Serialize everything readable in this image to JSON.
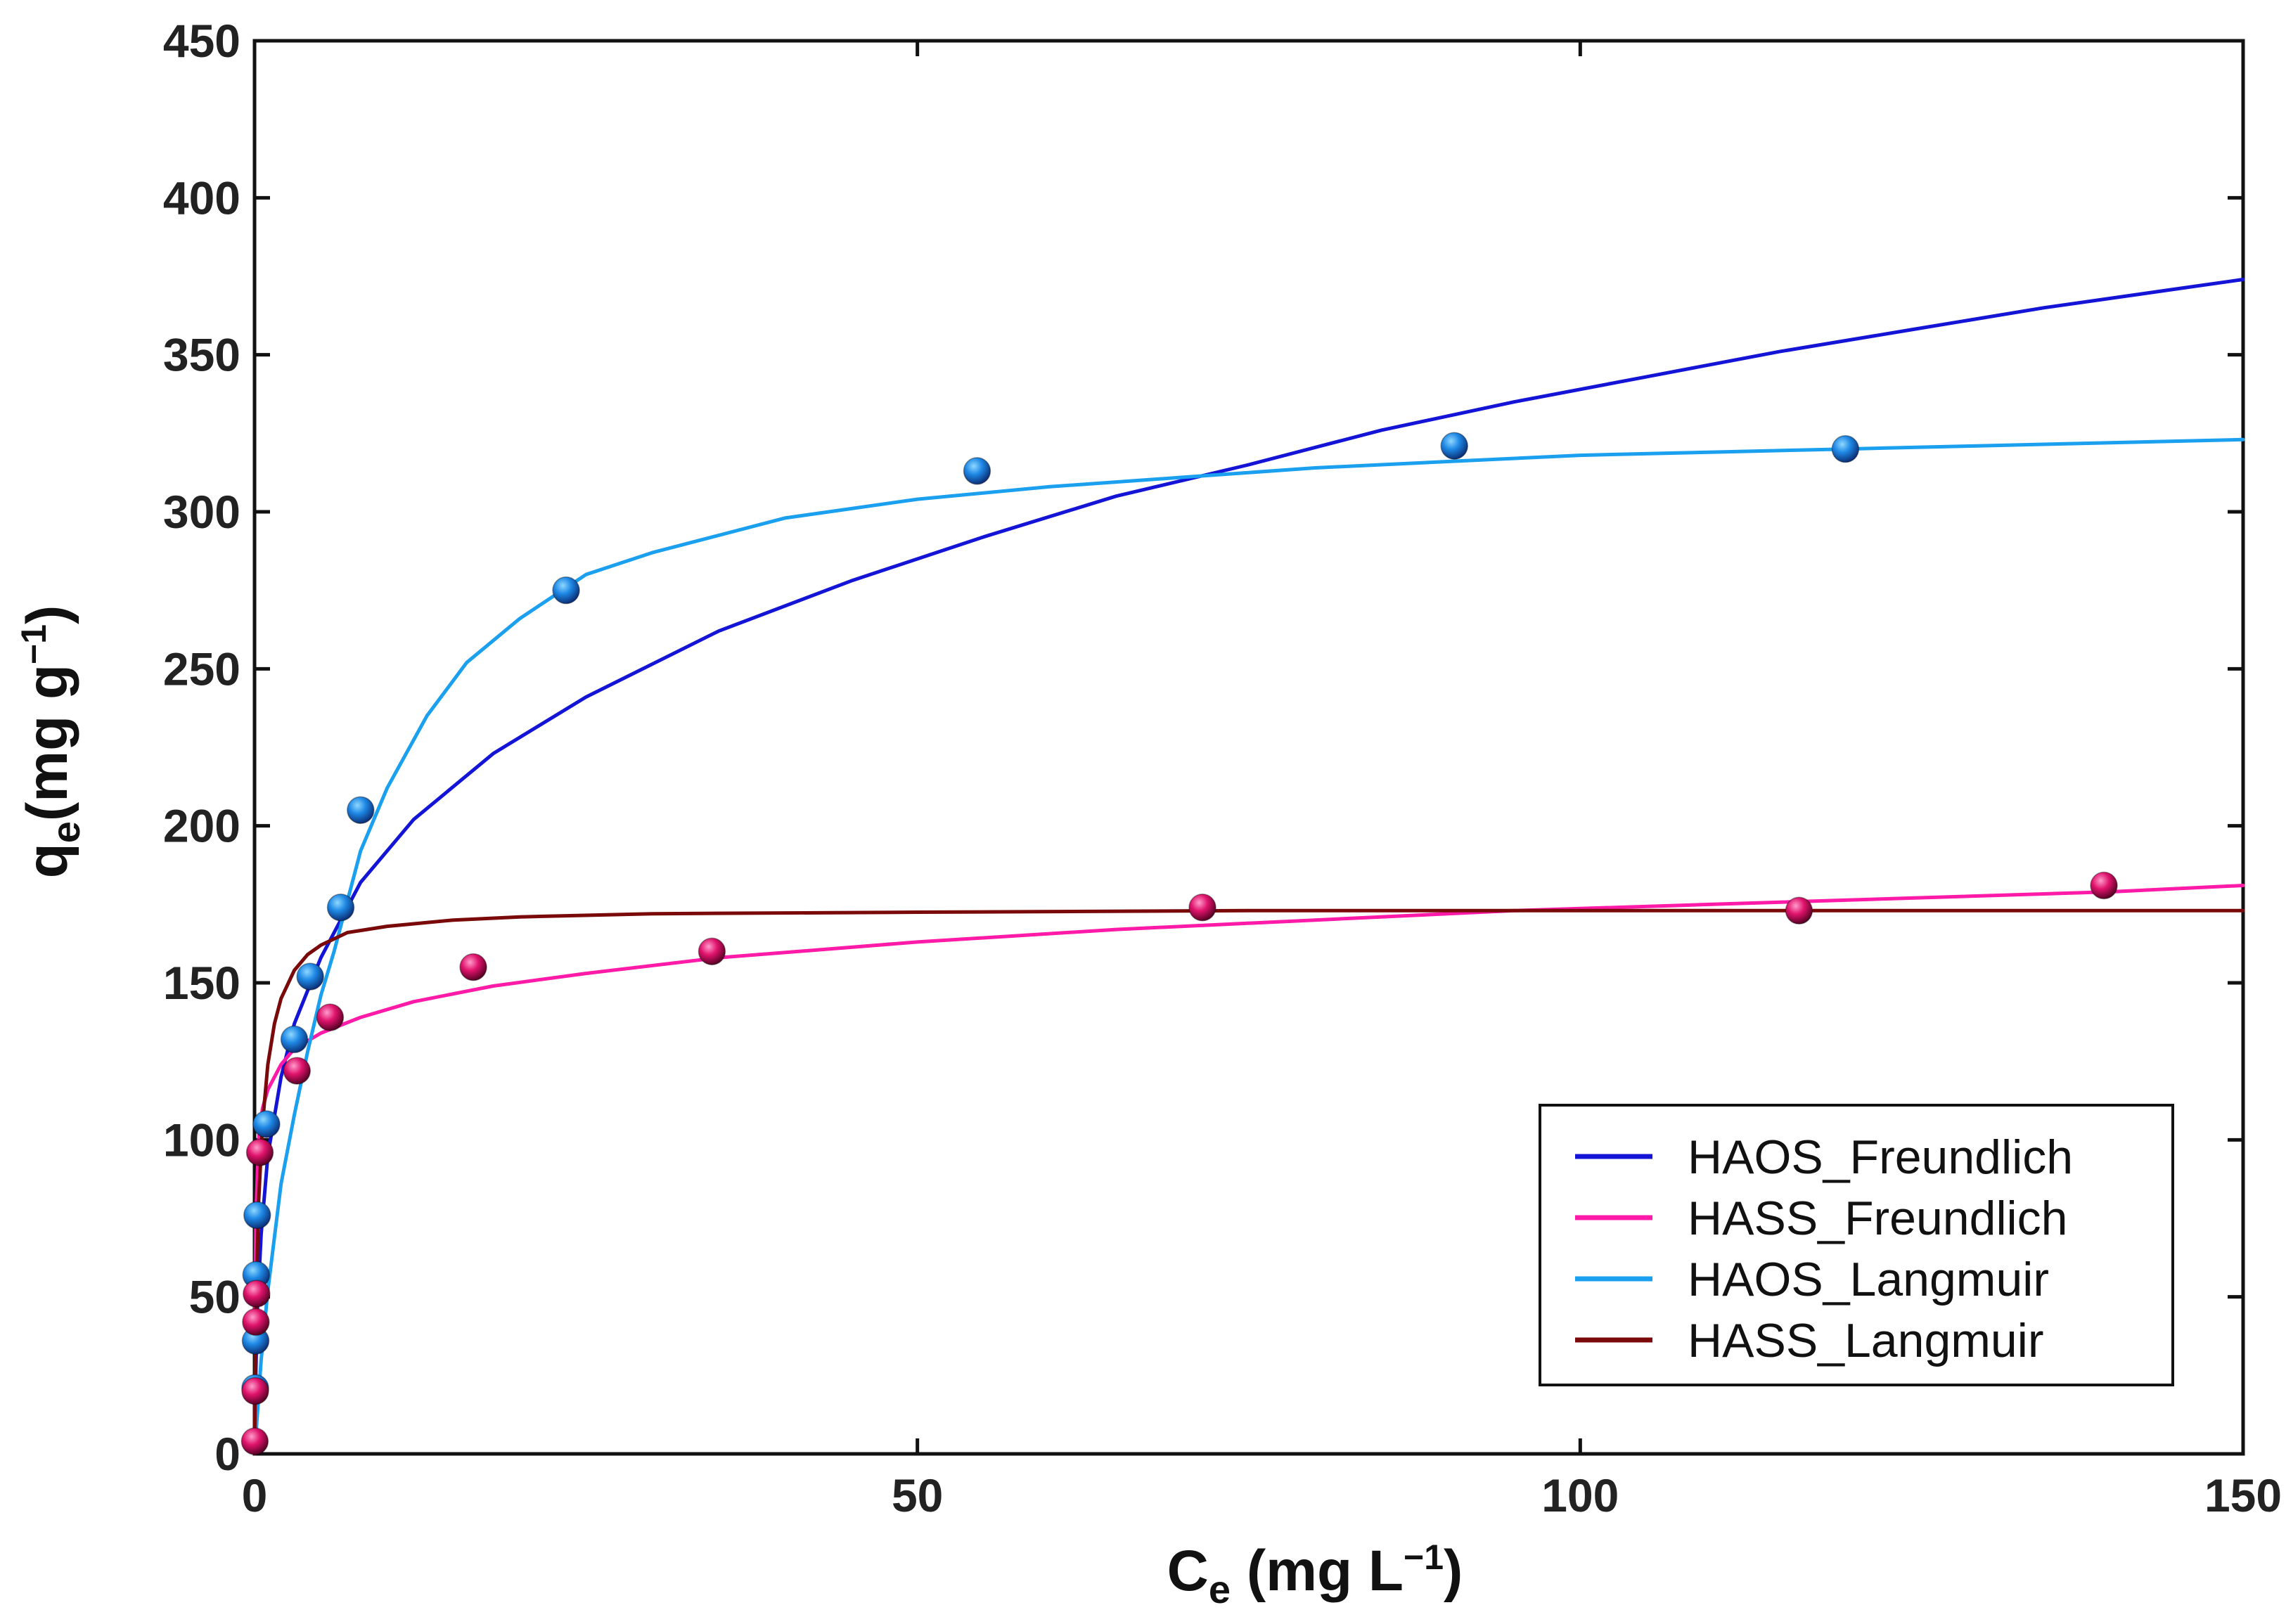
{
  "chart_data": {
    "type": "scatter",
    "xlabel": {
      "main": "C",
      "sub": "e",
      "units_pre": " (mg L",
      "sup": "−1",
      "units_post": ")"
    },
    "ylabel": {
      "main": "q",
      "sub": "e",
      "units_pre": "(mg g",
      "sup": "−1",
      "units_post": ")"
    },
    "xlim": [
      0,
      150
    ],
    "ylim": [
      0,
      450
    ],
    "xticks": [
      0,
      50,
      100,
      150
    ],
    "yticks": [
      0,
      50,
      100,
      150,
      200,
      250,
      300,
      350,
      400,
      450
    ],
    "grid": false,
    "legend_position": "bottom-right",
    "legend": [
      {
        "label": "HAOS_Freundlich",
        "color": "#1414d6"
      },
      {
        "label": "HASS_Freundlich",
        "color": "#ff1aa8"
      },
      {
        "label": "HAOS_Langmuir",
        "color": "#1aa0ee"
      },
      {
        "label": "HASS_Langmuir",
        "color": "#7a0a0a"
      }
    ],
    "series": [
      {
        "name": "HAOS_Freundlich",
        "kind": "line",
        "color": "#1414d6",
        "x": [
          0.02,
          0.2,
          0.5,
          1,
          2,
          3,
          5,
          8,
          12,
          18,
          25,
          35,
          45,
          55,
          65,
          75,
          85,
          95,
          105,
          115,
          125,
          135,
          145,
          150
        ],
        "y": [
          12,
          45,
          70,
          95,
          120,
          137,
          158,
          182,
          202,
          223,
          241,
          262,
          278,
          292,
          305,
          315,
          326,
          335,
          343,
          351,
          358,
          365,
          371,
          374
        ]
      },
      {
        "name": "HASS_Freundlich",
        "kind": "line",
        "color": "#ff1aa8",
        "x": [
          0.02,
          0.1,
          0.3,
          0.6,
          1,
          2,
          3,
          5,
          8,
          12,
          18,
          25,
          35,
          50,
          65,
          80,
          95,
          110,
          125,
          140,
          150
        ],
        "y": [
          40,
          75,
          100,
          110,
          116,
          124,
          129,
          134,
          139,
          144,
          149,
          153,
          158,
          163,
          167,
          170,
          173,
          175,
          177,
          179,
          181
        ]
      },
      {
        "name": "HAOS_Langmuir",
        "kind": "line",
        "color": "#1aa0ee",
        "x": [
          0,
          0.5,
          1,
          2,
          3,
          4,
          5,
          6,
          8,
          10,
          13,
          16,
          20,
          25,
          30,
          40,
          50,
          60,
          70,
          80,
          90,
          100,
          110,
          120,
          130,
          140,
          150
        ],
        "y": [
          0,
          30,
          52,
          86,
          108,
          128,
          146,
          160,
          192,
          212,
          235,
          252,
          266,
          280,
          287,
          298,
          304,
          308,
          311,
          314,
          316,
          318,
          319,
          320,
          321,
          322,
          323
        ]
      },
      {
        "name": "HASS_Langmuir",
        "kind": "line",
        "color": "#7a0a0a",
        "x": [
          0,
          0.1,
          0.3,
          0.6,
          1,
          1.5,
          2,
          3,
          4,
          5,
          7,
          10,
          15,
          20,
          30,
          50,
          75,
          100,
          125,
          150
        ],
        "y": [
          0,
          42,
          80,
          105,
          124,
          137,
          145,
          154,
          159,
          162,
          166,
          168,
          170,
          171,
          172,
          172.5,
          173,
          173,
          173,
          173
        ]
      },
      {
        "name": "HAOS data",
        "kind": "points",
        "color": "#1e7fd6",
        "x": [
          0.05,
          0.08,
          0.12,
          0.2,
          0.9,
          3,
          4.2,
          6.5,
          8,
          23.5,
          54.5,
          90.5,
          120
        ],
        "y": [
          21,
          36,
          57,
          76,
          105,
          132,
          152,
          174,
          205,
          275,
          313,
          321,
          320
        ]
      },
      {
        "name": "HASS data",
        "kind": "points",
        "color": "#d4145a",
        "x": [
          0.02,
          0.05,
          0.1,
          0.15,
          0.4,
          3.2,
          5.7,
          16.5,
          34.5,
          71.5,
          116.5,
          139.5
        ],
        "y": [
          4,
          20,
          42,
          51,
          96,
          122,
          139,
          155,
          160,
          174,
          173,
          181
        ]
      }
    ]
  }
}
